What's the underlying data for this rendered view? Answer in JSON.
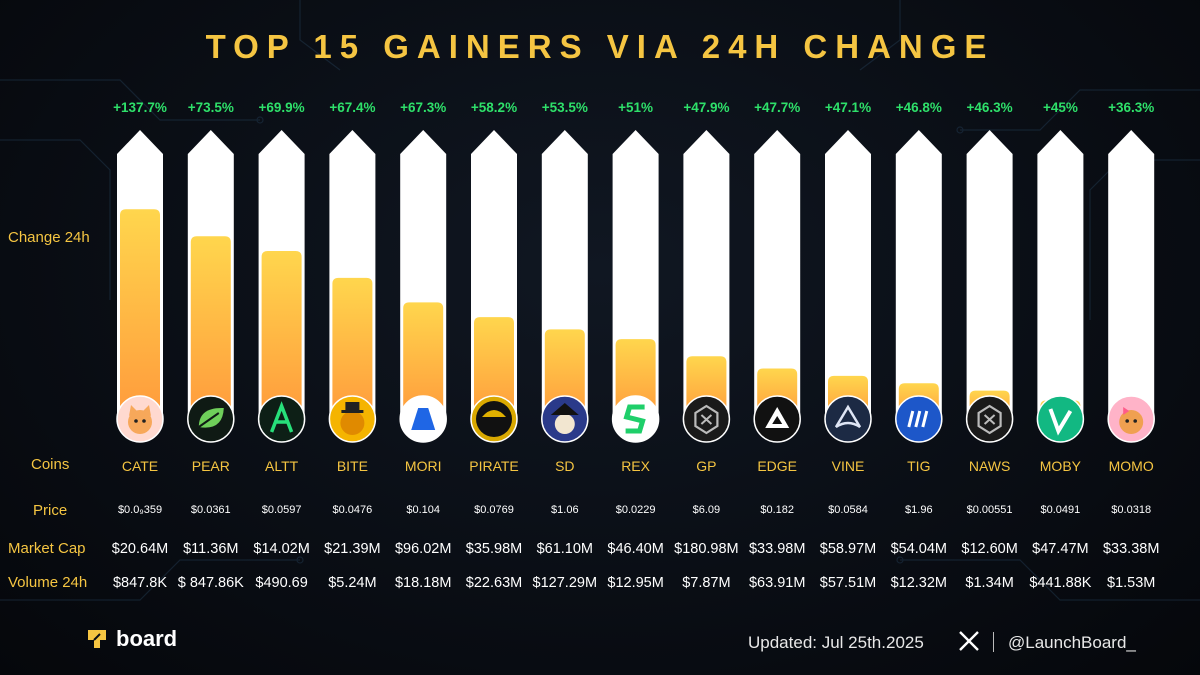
{
  "title": "TOP 15 GAINERS VIA 24H CHANGE",
  "labels": {
    "change": "Change 24h",
    "coins": "Coins",
    "price": "Price",
    "market_cap": "Market Cap",
    "volume": "Volume 24h"
  },
  "colors": {
    "accent": "#f5c542",
    "gain": "#2ee06a",
    "bar_top": "#ffd64d",
    "bar_bottom": "#ff9a3c",
    "track": "#ffffff"
  },
  "chart_data": {
    "type": "bar",
    "title": "TOP 15 GAINERS VIA 24H CHANGE",
    "ylabel": "Change 24h",
    "categories": [
      "CATE",
      "PEAR",
      "ALTT",
      "BITE",
      "MORI",
      "PIRATE",
      "SD",
      "REX",
      "GP",
      "EDGE",
      "VINE",
      "TIG",
      "NAWS",
      "MOBY",
      "MOMO"
    ],
    "change_labels": [
      "+137.7%",
      "+73.5%",
      "+69.9%",
      "+67.4%",
      "+67.3%",
      "+58.2%",
      "+53.5%",
      "+51%",
      "+47.9%",
      "+47.7%",
      "+47.1%",
      "+46.8%",
      "+46.3%",
      "+45%",
      "+36.3%"
    ],
    "values": [
      137.7,
      73.5,
      69.9,
      67.4,
      67.3,
      58.2,
      53.5,
      51,
      47.9,
      47.7,
      47.1,
      46.8,
      46.3,
      45,
      36.3
    ],
    "fill_fraction": [
      0.86,
      0.75,
      0.69,
      0.58,
      0.48,
      0.42,
      0.37,
      0.33,
      0.26,
      0.21,
      0.18,
      0.15,
      0.12,
      0.08,
      0.03
    ],
    "icons": [
      "cat-face-icon",
      "leaf-icon",
      "altt-a-icon",
      "bitcoin-hat-icon",
      "mori-mountain-icon",
      "pirate-hat-icon",
      "skull-pirate-icon",
      "rex-s-icon",
      "gp-cube-icon",
      "edge-triangle-icon",
      "vine-arch-icon",
      "tig-bars-icon",
      "naws-cube-icon",
      "vine-v-icon",
      "shiba-dog-icon"
    ],
    "prices": [
      "$0.0₉359",
      "$0.0361",
      "$0.0597",
      "$0.0476",
      "$0.104",
      "$0.0769",
      "$1.06",
      "$0.0229",
      "$6.09",
      "$0.182",
      "$0.0584",
      "$1.96",
      "$0.00551",
      "$0.0491",
      "$0.0318"
    ],
    "market_caps": [
      "$20.64M",
      "$11.36M",
      "$14.02M",
      "$21.39M",
      "$96.02M",
      "$35.98M",
      "$61.10M",
      "$46.40M",
      "$180.98M",
      "$33.98M",
      "$58.97M",
      "$54.04M",
      "$12.60M",
      "$47.47M",
      "$33.38M"
    ],
    "volumes": [
      "$847.8K",
      "$ 847.86K",
      "$490.69",
      "$5.24M",
      "$18.18M",
      "$22.63M",
      "$127.29M",
      "$12.95M",
      "$7.87M",
      "$63.91M",
      "$57.51M",
      "$12.32M",
      "$1.34M",
      "$441.88K",
      "$1.53M"
    ]
  },
  "footer": {
    "brand": "board",
    "updated": "Updated: Jul 25th.2025",
    "handle": "@LaunchBoard_"
  }
}
